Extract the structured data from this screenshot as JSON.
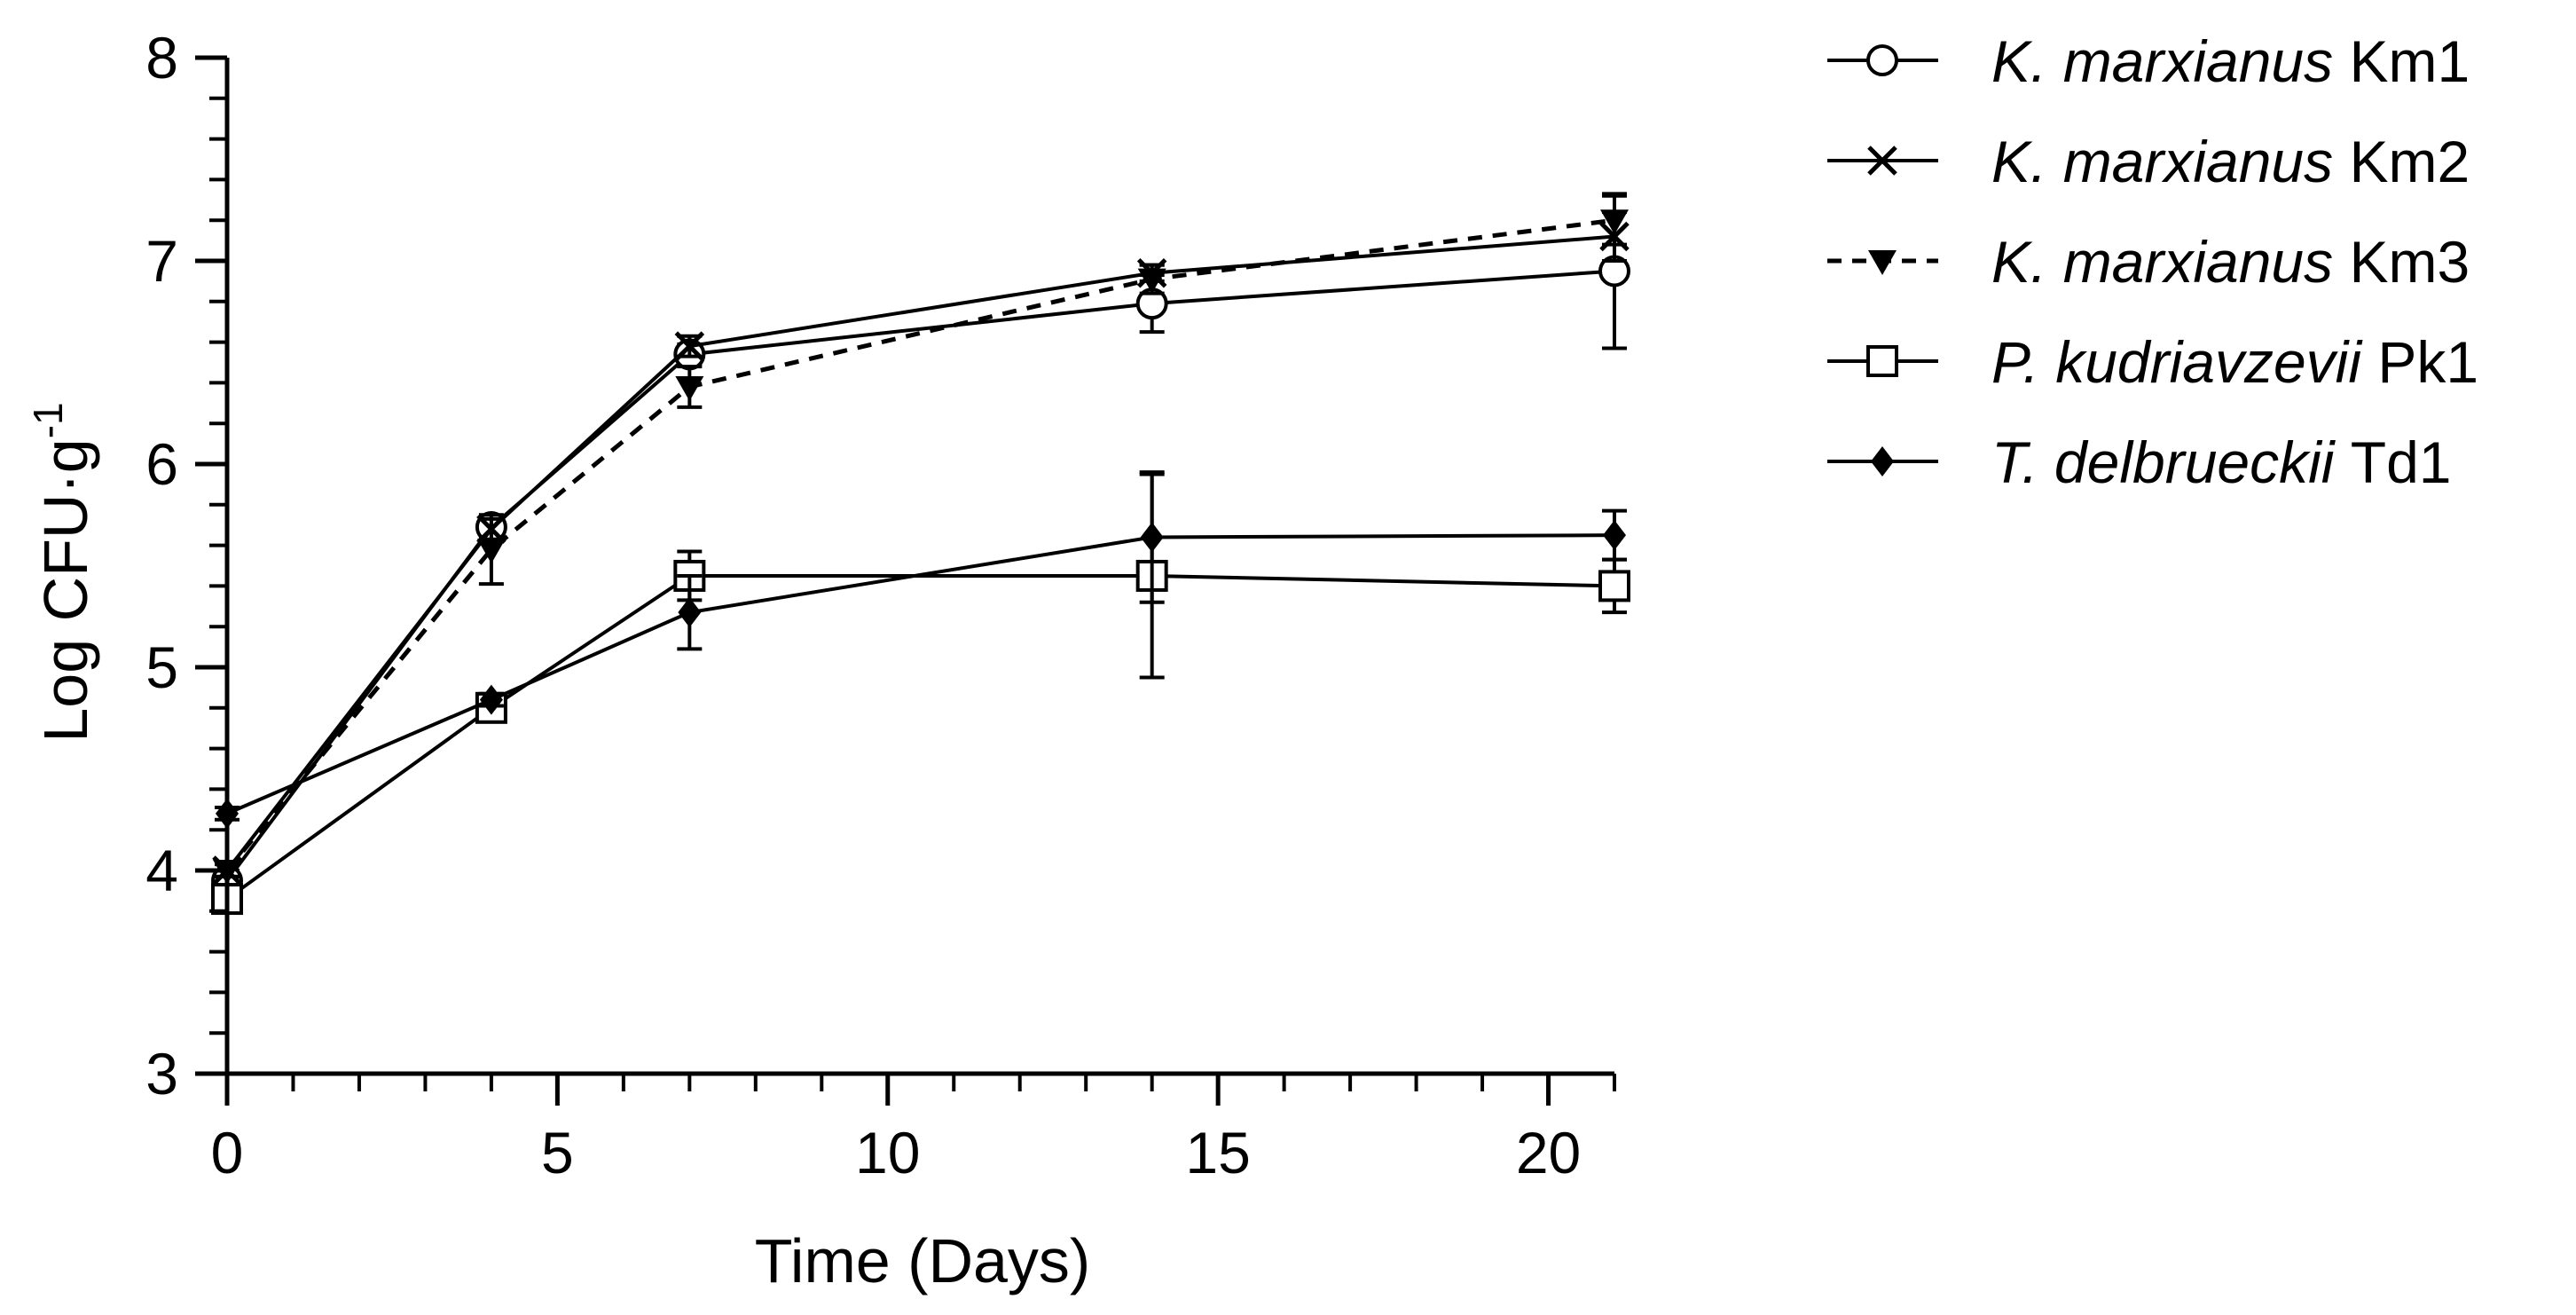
{
  "chart_data": {
    "type": "line",
    "title": "",
    "xlabel": "Time (Days)",
    "ylabel": {
      "main": "Log CFU·g",
      "superscript": "-1"
    },
    "xlim": [
      0,
      21
    ],
    "ylim": [
      3,
      8
    ],
    "x_ticks": [
      0,
      5,
      10,
      15,
      20
    ],
    "x_tick_labels": [
      "0",
      "5",
      "10",
      "15",
      "20"
    ],
    "y_ticks": [
      3,
      4,
      5,
      6,
      7,
      8
    ],
    "y_tick_labels": [
      "3",
      "4",
      "5",
      "6",
      "7",
      "8"
    ],
    "grid": false,
    "legend_position": "top-right",
    "x": [
      0,
      4,
      7,
      14,
      21
    ],
    "series": [
      {
        "name_italic": "K. marxianus",
        "name_plain": " Km1",
        "marker": "circle-open",
        "line": "solid",
        "values": [
          3.95,
          5.69,
          6.54,
          6.79,
          6.95
        ],
        "errors": [
          0.05,
          0.05,
          0.05,
          0.14,
          0.38
        ]
      },
      {
        "name_italic": "K. marxianus",
        "name_plain": " Km2",
        "marker": "x",
        "line": "solid",
        "values": [
          4.0,
          5.68,
          6.58,
          6.94,
          7.12
        ],
        "errors": [
          0.03,
          0.05,
          0.05,
          0.04,
          0.12
        ]
      },
      {
        "name_italic": "K. marxianus",
        "name_plain": " Km3",
        "marker": "triangle-down-filled",
        "line": "dashed",
        "values": [
          4.0,
          5.58,
          6.38,
          6.91,
          7.2
        ],
        "errors": [
          0.03,
          0.17,
          0.1,
          0.07,
          0.12
        ]
      },
      {
        "name_italic": "P. kudriavzevii",
        "name_plain": " Pk1",
        "marker": "square-open",
        "line": "solid",
        "values": [
          3.86,
          4.8,
          5.45,
          5.45,
          5.4
        ],
        "errors": [
          0.04,
          0.06,
          0.12,
          0.5,
          0.13
        ]
      },
      {
        "name_italic": "T. delbrueckii",
        "name_plain": " Td1",
        "marker": "diamond-filled",
        "line": "solid",
        "values": [
          4.28,
          4.84,
          5.27,
          5.64,
          5.65
        ],
        "errors": [
          0.03,
          0.03,
          0.18,
          0.32,
          0.12
        ]
      }
    ]
  },
  "colors": {
    "line": "#000000",
    "background": "#ffffff"
  }
}
